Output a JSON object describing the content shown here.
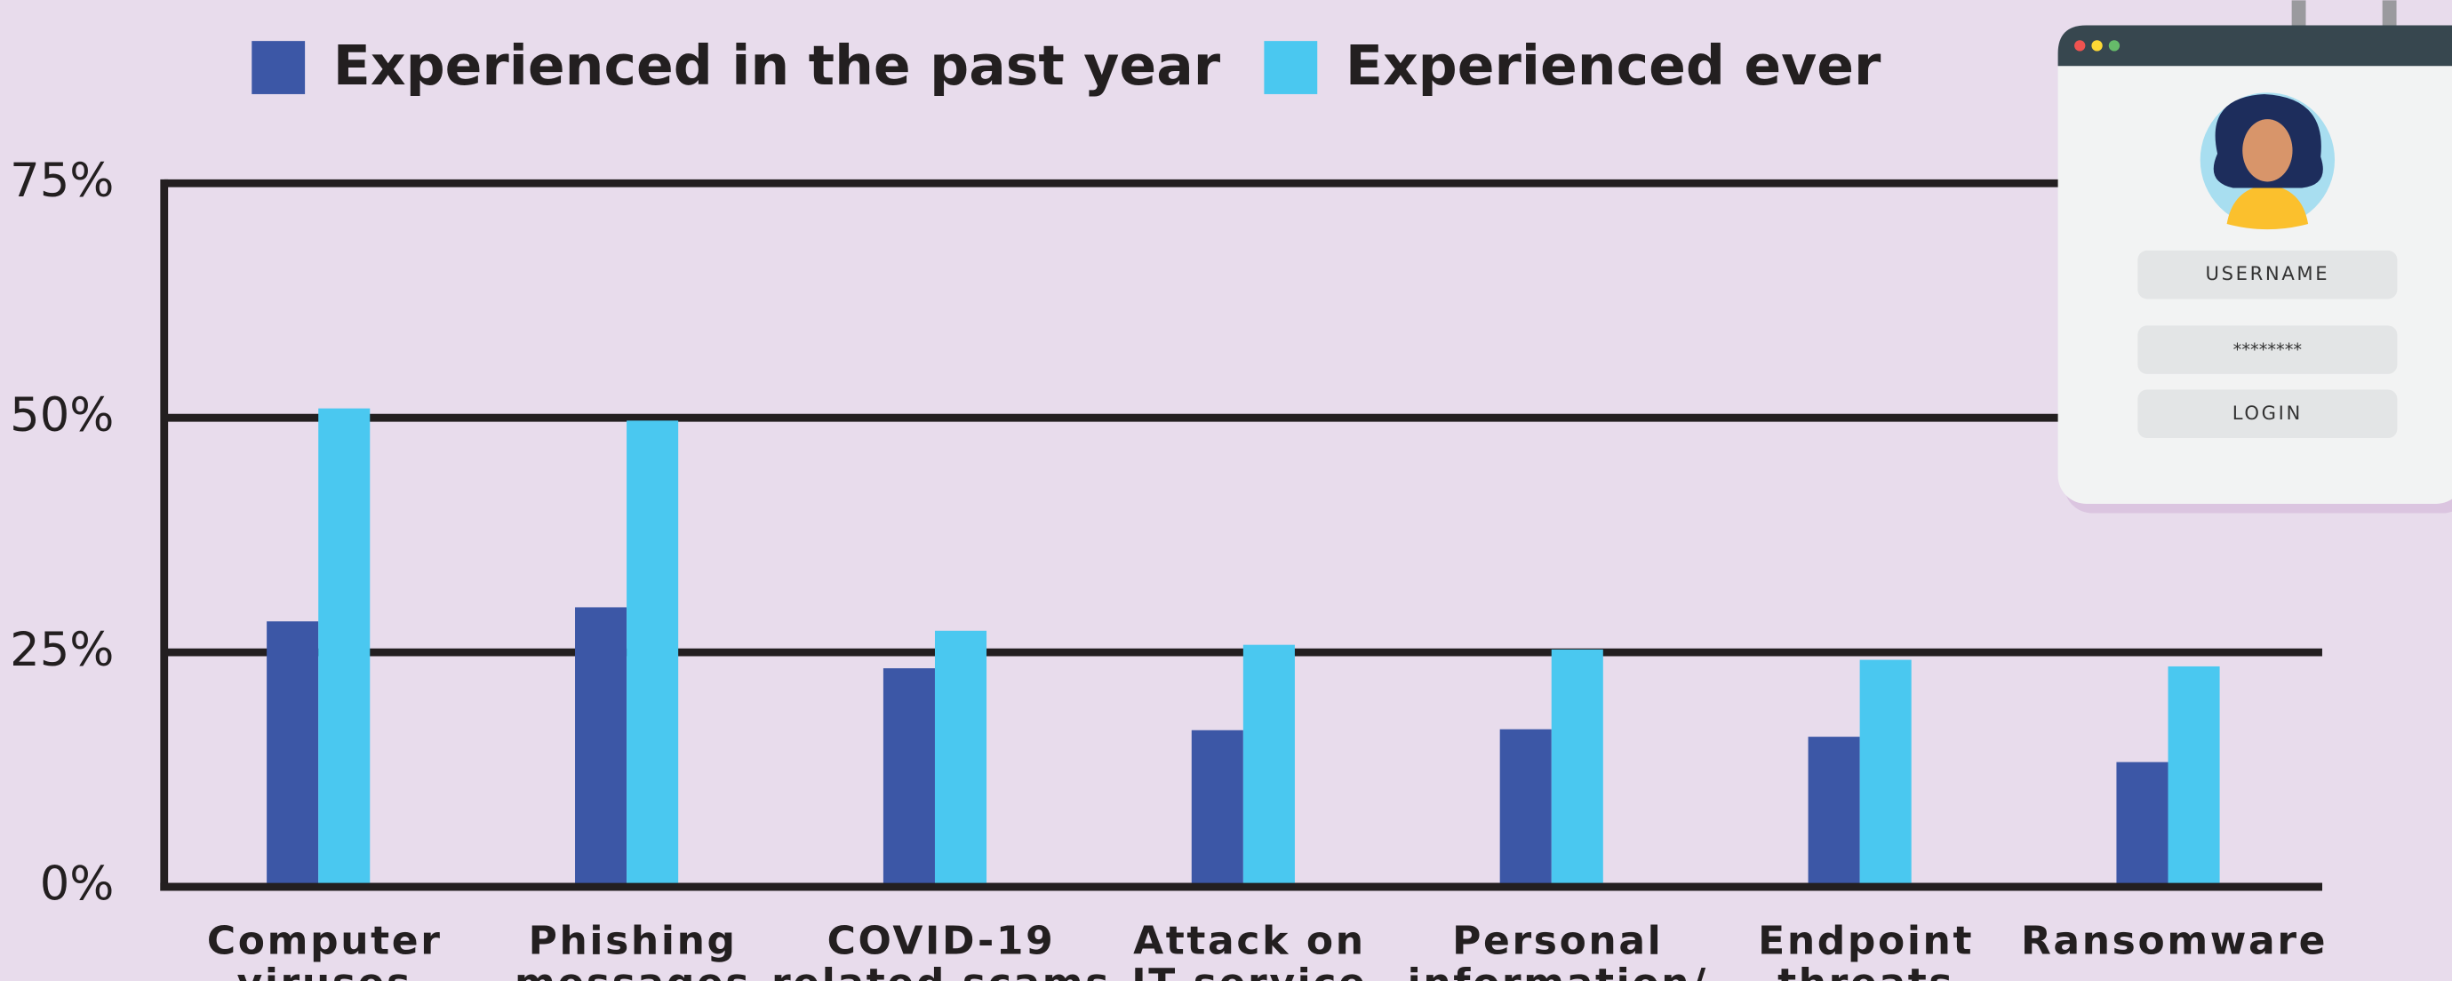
{
  "chart_data": {
    "type": "bar",
    "categories": [
      [
        "Computer",
        "viruses"
      ],
      [
        "Phishing",
        "messages"
      ],
      [
        "COVID-19",
        "related scams"
      ],
      [
        "Attack on",
        "IT service"
      ],
      [
        "Personal",
        "information/"
      ],
      [
        "Endpoint",
        "threats"
      ],
      [
        "Ransomware"
      ]
    ],
    "series": [
      {
        "name": "Experienced in the past year",
        "color": "#3c57a6",
        "values": [
          28.3,
          29.8,
          23.3,
          16.7,
          16.8,
          16,
          13.3
        ]
      },
      {
        "name": "Experienced ever",
        "color": "#4ac8f0",
        "values": [
          51,
          49.7,
          27.3,
          25.8,
          25.3,
          24.2,
          23.5
        ]
      }
    ],
    "ylim": [
      0,
      75
    ],
    "yticks": [
      {
        "value": 0,
        "label": "0%"
      },
      {
        "value": 25,
        "label": "25%"
      },
      {
        "value": 50,
        "label": "50%"
      },
      {
        "value": 75,
        "label": "75%"
      }
    ],
    "grid": true
  },
  "login_card": {
    "username": "USERNAME",
    "password": "********",
    "button": "LOGIN"
  }
}
